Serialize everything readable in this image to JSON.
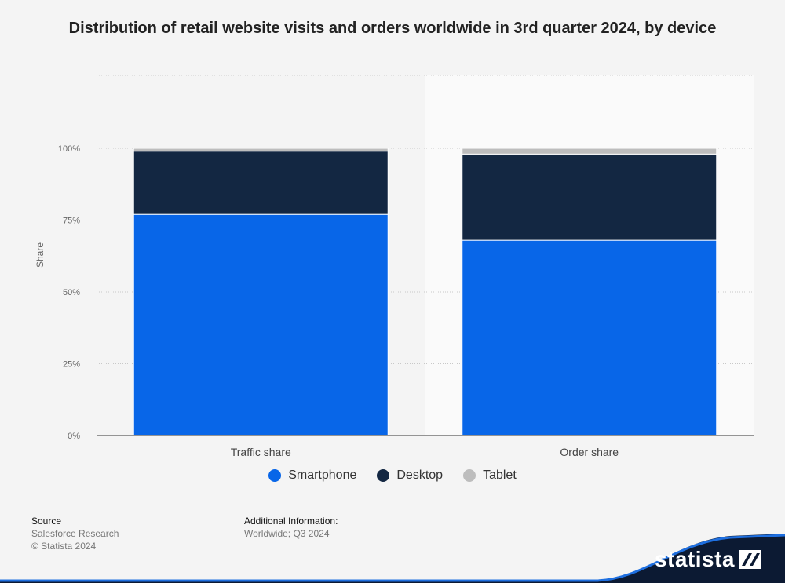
{
  "title": "Distribution of retail website visits and orders worldwide in 3rd quarter 2024, by device",
  "chart_data": {
    "type": "bar",
    "stacked": true,
    "categories": [
      "Traffic share",
      "Order share"
    ],
    "series": [
      {
        "name": "Smartphone",
        "values": [
          77,
          68
        ],
        "color": "#0866e8"
      },
      {
        "name": "Desktop",
        "values": [
          22,
          30
        ],
        "color": "#132742"
      },
      {
        "name": "Tablet",
        "values": [
          1,
          2
        ],
        "color": "#bdbdbd"
      }
    ],
    "ylabel": "Share",
    "ylim": [
      0,
      100
    ],
    "yticks": [
      0,
      25,
      50,
      75,
      100
    ],
    "ytick_labels": [
      "0%",
      "25%",
      "50%",
      "75%",
      "100%"
    ],
    "grid": true,
    "legend_position": "bottom"
  },
  "footer": {
    "source_heading": "Source",
    "source_lines": [
      "Salesforce Research",
      "© Statista 2024"
    ],
    "info_heading": "Additional Information:",
    "info_lines": [
      "Worldwide; Q3 2024"
    ]
  },
  "logo": {
    "text": "statista",
    "icon": "statista-logo-icon"
  }
}
